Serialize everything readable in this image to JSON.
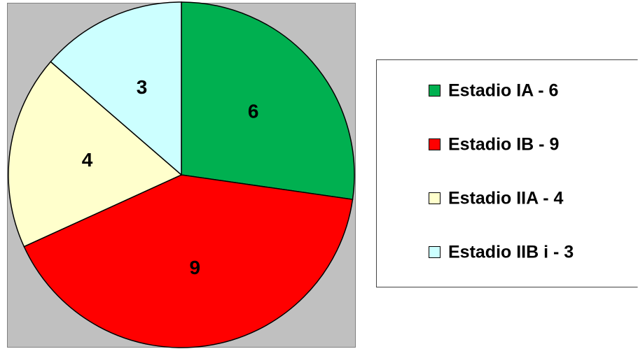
{
  "chart_data": {
    "type": "pie",
    "categories": [
      "Estadio IA - 6",
      "Estadio IB - 9",
      "Estadio IIA - 4",
      "Estadio IIB i - 3"
    ],
    "values": [
      6,
      9,
      4,
      3
    ],
    "colors": [
      "#00b050",
      "#ff0000",
      "#ffffcc",
      "#ccffff"
    ]
  }
}
